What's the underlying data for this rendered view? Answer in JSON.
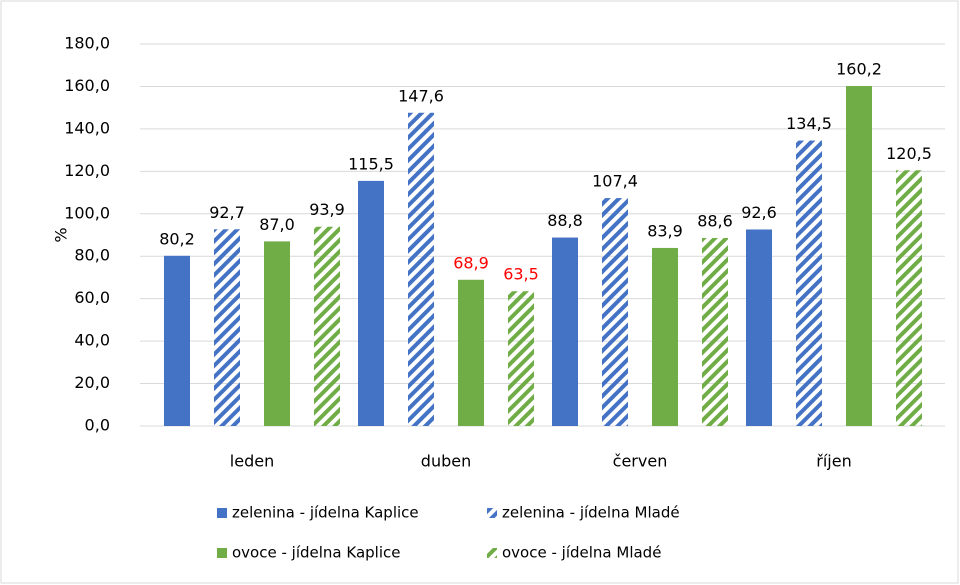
{
  "chart_data": {
    "type": "bar",
    "y_label": "%",
    "categories": [
      "leden",
      "duben",
      "červen",
      "říjen"
    ],
    "series": [
      {
        "name": "zelenina - jídelna Kaplice",
        "color": "#4472c4",
        "pattern": "solid",
        "values": [
          80.2,
          115.5,
          88.8,
          92.6
        ],
        "value_labels": [
          "80,2",
          "115,5",
          "88,8",
          "92,6"
        ],
        "value_label_colors": [
          "#000000",
          "#000000",
          "#000000",
          "#000000"
        ]
      },
      {
        "name": "zelenina - jídelna Mladé",
        "color": "#4472c4",
        "pattern": "hatch",
        "values": [
          92.7,
          147.6,
          107.4,
          134.5
        ],
        "value_labels": [
          "92,7",
          "147,6",
          "107,4",
          "134,5"
        ],
        "value_label_colors": [
          "#000000",
          "#000000",
          "#000000",
          "#000000"
        ]
      },
      {
        "name": "ovoce - jídelna Kaplice",
        "color": "#70ad47",
        "pattern": "solid",
        "values": [
          87.0,
          68.9,
          83.9,
          160.2
        ],
        "value_labels": [
          "87,0",
          "68,9",
          "83,9",
          "160,2"
        ],
        "value_label_colors": [
          "#000000",
          "#ff0000",
          "#000000",
          "#000000"
        ]
      },
      {
        "name": "ovoce - jídelna Mladé",
        "color": "#70ad47",
        "pattern": "hatch",
        "values": [
          93.9,
          63.5,
          88.6,
          120.5
        ],
        "value_labels": [
          "93,9",
          "63,5",
          "88,6",
          "120,5"
        ],
        "value_label_colors": [
          "#000000",
          "#ff0000",
          "#000000",
          "#000000"
        ]
      }
    ],
    "ylim": [
      0,
      180
    ],
    "yticks": [
      {
        "value": 0,
        "label": "0,0"
      },
      {
        "value": 20,
        "label": "20,0"
      },
      {
        "value": 40,
        "label": "40,0"
      },
      {
        "value": 60,
        "label": "60,0"
      },
      {
        "value": 80,
        "label": "80,0"
      },
      {
        "value": 100,
        "label": "100,0"
      },
      {
        "value": 120,
        "label": "120,0"
      },
      {
        "value": 140,
        "label": "140,0"
      },
      {
        "value": 160,
        "label": "160,0"
      },
      {
        "value": 180,
        "label": "180,0"
      }
    ],
    "grid": true,
    "legend": "bottom"
  }
}
